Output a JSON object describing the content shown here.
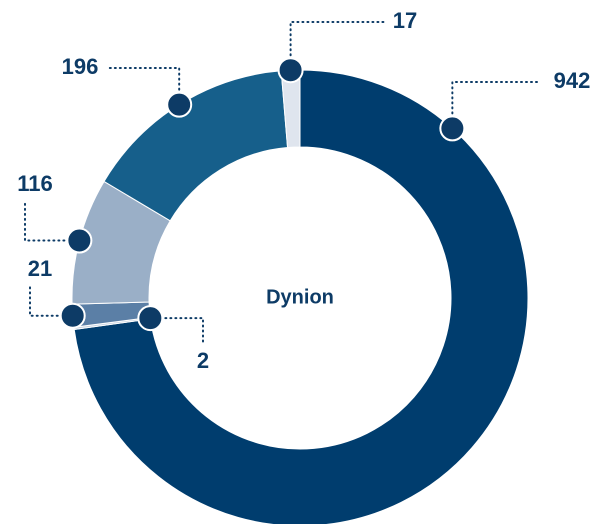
{
  "chart_data": {
    "type": "donut",
    "center_label": "Dynion",
    "categories": [
      null,
      null,
      null,
      null,
      null,
      null
    ],
    "values": [
      942,
      2,
      21,
      116,
      196,
      17
    ],
    "colors": [
      "#003d6e",
      "#c9d5e3",
      "#5b7fa6",
      "#9aafc7",
      "#165f8b",
      "#dfe5ee"
    ]
  }
}
